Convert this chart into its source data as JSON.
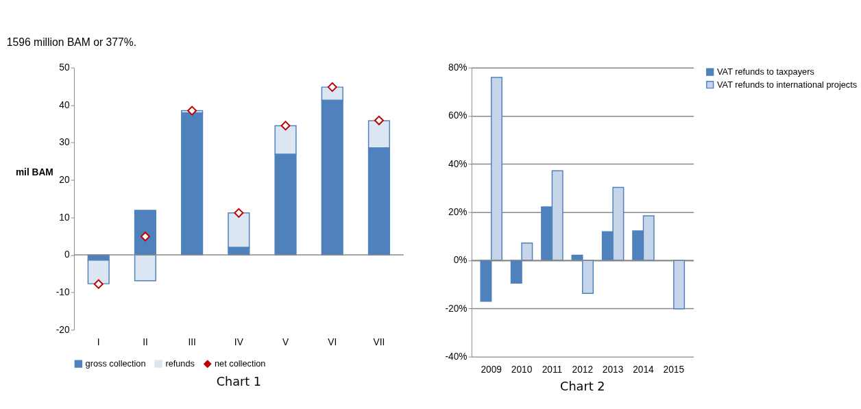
{
  "chart_data": [
    {
      "type": "bar",
      "title": "Chart 1",
      "ylabel": "mil BAM",
      "stacked": true,
      "legend": "bottom",
      "marker": "diamond",
      "annotations": [
        "1596 million BAM or 377%."
      ],
      "categories": [
        "I",
        "II",
        "III",
        "IV",
        "V",
        "VI",
        "VII"
      ],
      "ylim": [
        -20,
        50
      ],
      "yticks": [
        -20,
        -10,
        0,
        10,
        20,
        30,
        40,
        50
      ],
      "series": [
        {
          "name": "gross collection",
          "color": "#4f81bd",
          "values": [
            -1.4,
            11.9,
            37.9,
            2.0,
            26.9,
            41.3,
            28.6
          ]
        },
        {
          "name": "refunds",
          "color": "#dce6f2",
          "values": [
            -6.3,
            -6.9,
            0.6,
            9.2,
            7.6,
            3.5,
            7.2
          ]
        },
        {
          "name": "net collection",
          "type": "scatter",
          "color": "#c00000",
          "values": [
            -7.8,
            4.9,
            38.5,
            11.2,
            34.5,
            44.8,
            35.9
          ]
        }
      ]
    },
    {
      "type": "bar",
      "title": "Chart 2",
      "legend": "right",
      "grid": "y",
      "categories": [
        "2009",
        "2010",
        "2011",
        "2012",
        "2013",
        "2014",
        "2015"
      ],
      "ylim": [
        -40,
        80
      ],
      "yticks": [
        {
          "value": -40,
          "label": "-40%"
        },
        {
          "value": -20,
          "label": "-20%"
        },
        {
          "value": 0,
          "label": "0%"
        },
        {
          "value": 20,
          "label": "20%"
        },
        {
          "value": 40,
          "label": "40%"
        },
        {
          "value": 60,
          "label": "60%"
        },
        {
          "value": 80,
          "label": "80%"
        }
      ],
      "series": [
        {
          "name": "VAT refunds to taxpayers",
          "color": "#4f81bd",
          "values": [
            -17.0,
            -9.5,
            22.2,
            2.1,
            11.9,
            12.2,
            null
          ]
        },
        {
          "name": "VAT refunds to international projects",
          "color": "#c6d5ea",
          "values": [
            75.9,
            7.2,
            37.2,
            -13.7,
            30.3,
            18.5,
            -20.1
          ]
        }
      ]
    }
  ]
}
